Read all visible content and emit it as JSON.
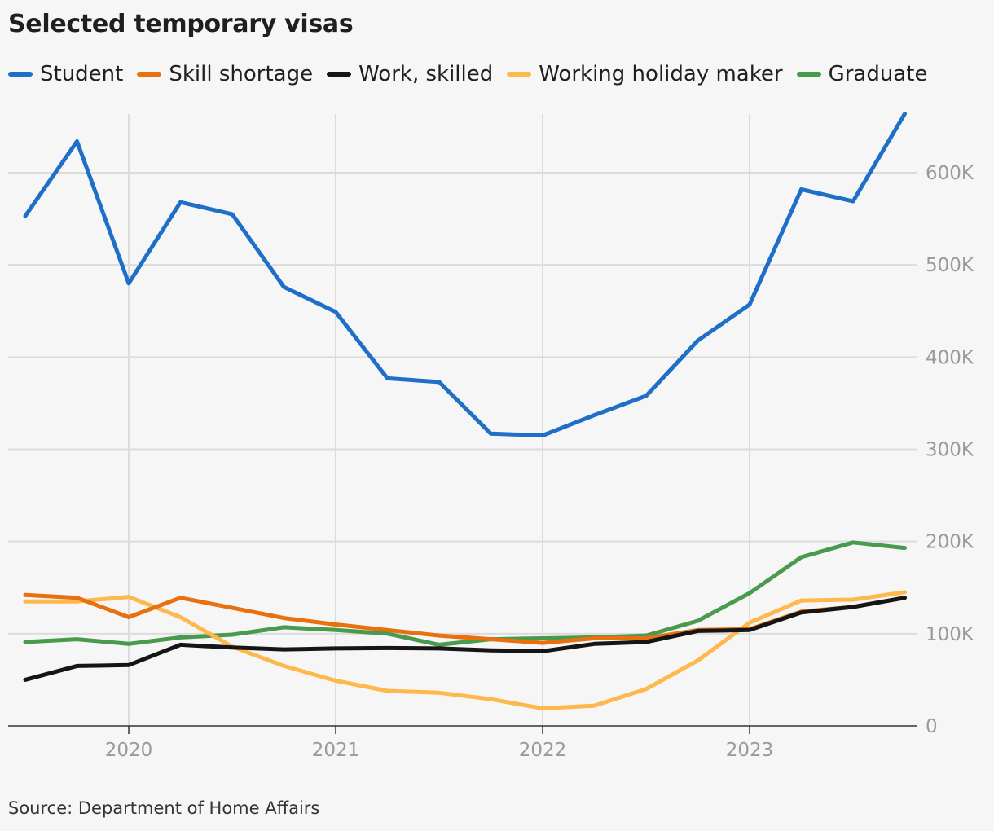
{
  "title": "Selected temporary visas",
  "source": "Source: Department of Home Affairs",
  "chart_data": {
    "type": "line",
    "title": "Selected temporary visas",
    "xlabel": "",
    "ylabel": "",
    "ylim": [
      0,
      660000
    ],
    "xlim": [
      2019.5,
      2023.75
    ],
    "grid": true,
    "legend_placement": "top-left",
    "x_ticks": [
      2020,
      2021,
      2022,
      2023
    ],
    "x_tick_labels": [
      "2020",
      "2021",
      "2022",
      "2023"
    ],
    "y_ticks": [
      0,
      100000,
      200000,
      300000,
      400000,
      500000,
      600000
    ],
    "y_tick_labels": [
      "0",
      "100K",
      "200K",
      "300K",
      "400K",
      "500K",
      "600K"
    ],
    "x": [
      2019.5,
      2019.75,
      2020.0,
      2020.25,
      2020.5,
      2020.75,
      2021.0,
      2021.25,
      2021.5,
      2021.75,
      2022.0,
      2022.25,
      2022.5,
      2022.75,
      2023.0,
      2023.25,
      2023.5,
      2023.75
    ],
    "series": [
      {
        "name": "Student",
        "color": "#1e6fc8",
        "values": [
          553000,
          634000,
          480000,
          568000,
          555000,
          476000,
          449000,
          377000,
          373000,
          317000,
          315000,
          337000,
          358000,
          418000,
          457000,
          582000,
          569000,
          664000
        ]
      },
      {
        "name": "Skill shortage",
        "color": "#e8700f",
        "values": [
          142000,
          139000,
          118000,
          139000,
          128000,
          117000,
          110000,
          104000,
          98000,
          94000,
          90000,
          95000,
          95000,
          104000,
          105000,
          124000,
          129000,
          139000
        ]
      },
      {
        "name": "Work, skilled",
        "color": "#151515",
        "values": [
          50000,
          65000,
          66000,
          88000,
          85000,
          83000,
          84000,
          84500,
          84000,
          82000,
          81000,
          89000,
          91000,
          103000,
          104000,
          123000,
          129000,
          139000
        ]
      },
      {
        "name": "Working holiday maker",
        "color": "#fdb94d",
        "values": [
          135000,
          135000,
          140000,
          118000,
          86000,
          65000,
          49000,
          38000,
          36000,
          29000,
          19000,
          22000,
          40000,
          71000,
          112000,
          136000,
          137000,
          145000
        ]
      },
      {
        "name": "Graduate",
        "color": "#4a9a4e",
        "values": [
          91000,
          94000,
          89000,
          96000,
          99000,
          107000,
          104000,
          100000,
          88000,
          94000,
          95000,
          96000,
          98000,
          114000,
          144000,
          183000,
          199000,
          193000
        ]
      }
    ]
  }
}
